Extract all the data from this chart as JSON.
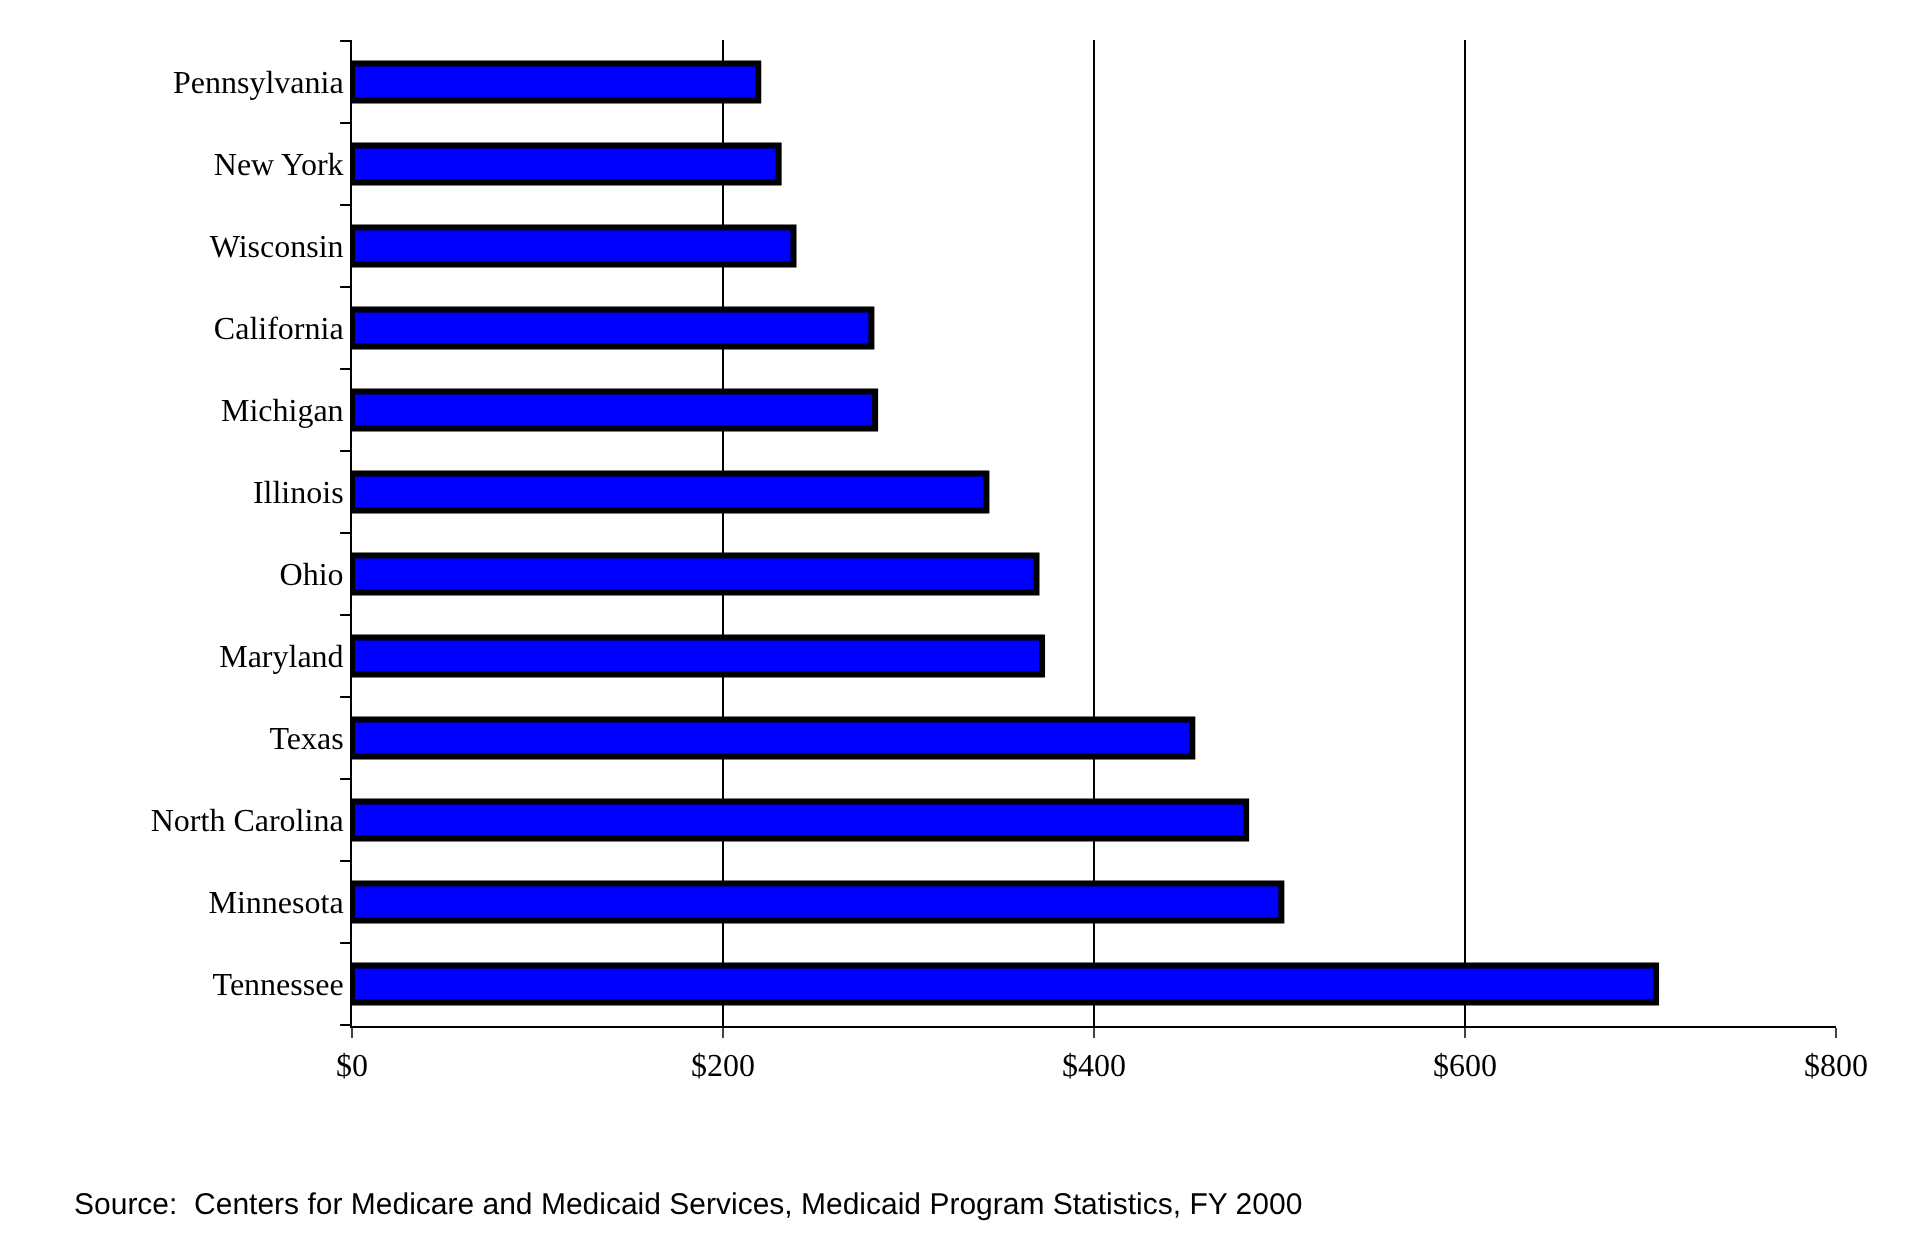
{
  "chart_data": {
    "type": "bar",
    "orientation": "horizontal",
    "categories": [
      "Pennsylvania",
      "New York",
      "Wisconsin",
      "California",
      "Michigan",
      "Illinois",
      "Ohio",
      "Maryland",
      "Texas",
      "North Carolina",
      "Minnesota",
      "Tennessee"
    ],
    "values": [
      219,
      230,
      238,
      280,
      282,
      342,
      369,
      372,
      453,
      482,
      501,
      703
    ],
    "color": "#0000ff",
    "xlim": [
      0,
      800
    ],
    "xticks": [
      {
        "value": 0,
        "label": "$0"
      },
      {
        "value": 200,
        "label": "$200"
      },
      {
        "value": 400,
        "label": "$400"
      },
      {
        "value": 600,
        "label": "$600"
      },
      {
        "value": 800,
        "label": "$800"
      }
    ],
    "grid": "x",
    "annotations": [
      "Source:  Centers for Medicare and Medicaid Services, Medicaid Program Statistics, FY 2000"
    ]
  }
}
